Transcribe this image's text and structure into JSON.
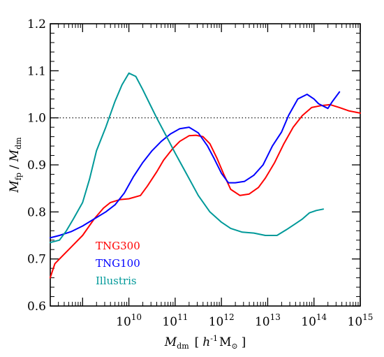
{
  "chart_data": {
    "type": "line",
    "xlabel_main": "M",
    "xlabel_sub": "dm",
    "xlabel_units_open": "[",
    "xlabel_units_h": "h",
    "xlabel_units_exp": "-1",
    "xlabel_units_msun": "M",
    "xlabel_units_sun": "⊙",
    "xlabel_units_close": "]",
    "ylabel_num": "M",
    "ylabel_num_sub": "fp",
    "ylabel_div": "/",
    "ylabel_den": "M",
    "ylabel_den_sub": "dm",
    "x_scale": "log",
    "xlim": [
      200000000,
      1000000000000000
    ],
    "ylim": [
      0.6,
      1.2
    ],
    "x_ticks": [
      {
        "base": "10",
        "exp": "10",
        "value": 10
      },
      {
        "base": "10",
        "exp": "11",
        "value": 11
      },
      {
        "base": "10",
        "exp": "12",
        "value": 12
      },
      {
        "base": "10",
        "exp": "13",
        "value": 13
      },
      {
        "base": "10",
        "exp": "14",
        "value": 14
      },
      {
        "base": "10",
        "exp": "15",
        "value": 15
      }
    ],
    "y_ticks": [
      "0.6",
      "0.7",
      "0.8",
      "0.9",
      "1.0",
      "1.1",
      "1.2"
    ],
    "reference_line": {
      "y": 1.0,
      "style": "dotted"
    },
    "legend_position": "bottom-left",
    "series": [
      {
        "name": "TNG300",
        "color": "#ff0000",
        "x_log": [
          8.3,
          8.4,
          8.55,
          8.75,
          9.0,
          9.25,
          9.45,
          9.6,
          9.8,
          10.0,
          10.25,
          10.4,
          10.6,
          10.75,
          10.95,
          11.1,
          11.3,
          11.45,
          11.6,
          11.75,
          11.9,
          12.05,
          12.2,
          12.4,
          12.6,
          12.8,
          12.95,
          13.15,
          13.35,
          13.55,
          13.75,
          13.95,
          14.15,
          14.35,
          14.55,
          14.75,
          15.0
        ],
        "y": [
          0.66,
          0.69,
          0.705,
          0.725,
          0.75,
          0.785,
          0.808,
          0.82,
          0.826,
          0.828,
          0.835,
          0.855,
          0.885,
          0.91,
          0.935,
          0.95,
          0.962,
          0.963,
          0.96,
          0.945,
          0.915,
          0.88,
          0.848,
          0.835,
          0.838,
          0.852,
          0.872,
          0.905,
          0.945,
          0.98,
          1.005,
          1.022,
          1.026,
          1.028,
          1.022,
          1.015,
          1.01
        ]
      },
      {
        "name": "TNG100",
        "color": "#0000ff",
        "x_log": [
          8.3,
          8.5,
          8.75,
          9.0,
          9.25,
          9.5,
          9.7,
          9.9,
          10.1,
          10.3,
          10.5,
          10.7,
          10.9,
          11.1,
          11.3,
          11.5,
          11.7,
          11.85,
          12.0,
          12.15,
          12.3,
          12.5,
          12.7,
          12.9,
          13.1,
          13.3,
          13.45,
          13.65,
          13.85,
          14.0,
          14.1,
          14.3,
          14.4,
          14.55
        ],
        "y": [
          0.745,
          0.75,
          0.758,
          0.77,
          0.785,
          0.8,
          0.815,
          0.84,
          0.875,
          0.905,
          0.93,
          0.95,
          0.966,
          0.977,
          0.98,
          0.968,
          0.94,
          0.912,
          0.882,
          0.862,
          0.862,
          0.865,
          0.878,
          0.9,
          0.94,
          0.97,
          1.005,
          1.04,
          1.05,
          1.04,
          1.03,
          1.02,
          1.035,
          1.055
        ]
      },
      {
        "name": "Illustris",
        "color": "#009999",
        "x_log": [
          8.3,
          8.5,
          8.65,
          8.8,
          9.0,
          9.15,
          9.3,
          9.5,
          9.7,
          9.85,
          10.0,
          10.15,
          10.3,
          10.45,
          10.6,
          10.8,
          11.0,
          11.25,
          11.5,
          11.75,
          12.0,
          12.2,
          12.45,
          12.7,
          12.95,
          13.2,
          13.4,
          13.6,
          13.75,
          13.9,
          14.05,
          14.2
        ],
        "y": [
          0.735,
          0.74,
          0.76,
          0.785,
          0.82,
          0.87,
          0.93,
          0.98,
          1.035,
          1.07,
          1.095,
          1.088,
          1.06,
          1.03,
          1.0,
          0.963,
          0.925,
          0.88,
          0.835,
          0.8,
          0.778,
          0.765,
          0.757,
          0.755,
          0.75,
          0.75,
          0.762,
          0.775,
          0.785,
          0.798,
          0.803,
          0.806
        ]
      }
    ]
  }
}
